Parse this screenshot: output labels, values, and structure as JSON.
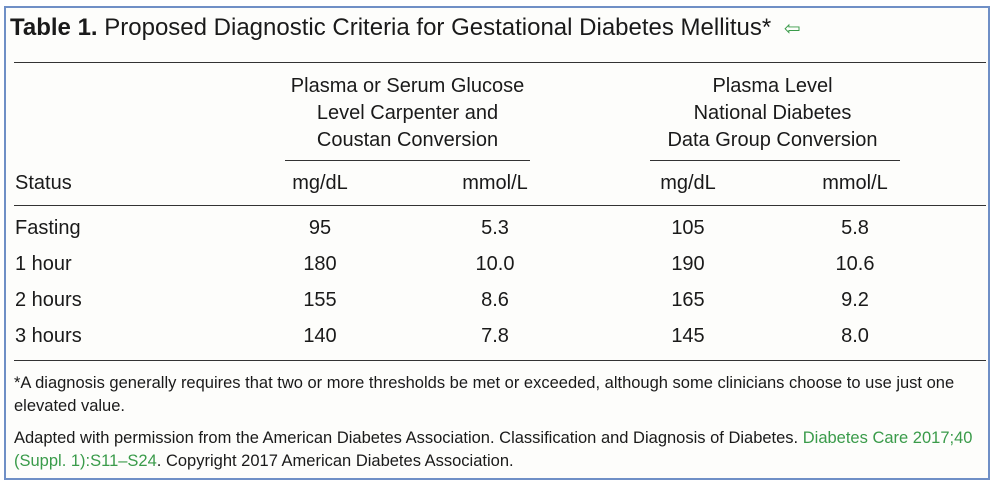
{
  "title": {
    "label": "Table 1.",
    "text": "Proposed Diagnostic Criteria for Gestational Diabetes Mellitus*",
    "back_icon": "back-arrow-icon"
  },
  "groups": [
    {
      "line1": "Plasma or Serum Glucose",
      "line2": "Level Carpenter and",
      "line3": "Coustan Conversion"
    },
    {
      "line1": "Plasma Level",
      "line2": "National Diabetes",
      "line3": "Data Group Conversion"
    }
  ],
  "columns": [
    "Status",
    "mg/dL",
    "mmol/L",
    "mg/dL",
    "mmol/L"
  ],
  "rows": [
    {
      "status": "Fasting",
      "v1": "95",
      "v2": "5.3",
      "v3": "105",
      "v4": "5.8"
    },
    {
      "status": "1 hour",
      "v1": "180",
      "v2": "10.0",
      "v3": "190",
      "v4": "10.6"
    },
    {
      "status": "2 hours",
      "v1": "155",
      "v2": "8.6",
      "v3": "165",
      "v4": "9.2"
    },
    {
      "status": "3 hours",
      "v1": "140",
      "v2": "7.8",
      "v3": "145",
      "v4": "8.0"
    }
  ],
  "footnotes": {
    "note": "*A diagnosis generally requires that two or more thresholds be met or exceeded, although some clinicians choose to use just one elevated value.",
    "source_prefix": "Adapted with permission from the American Diabetes Association. Classification and Diagnosis of Diabetes. ",
    "source_link": "Diabetes Care 2017;40 (Suppl. 1):S11–S24",
    "source_suffix": ". Copyright 2017 American Diabetes Association."
  },
  "colors": {
    "border": "#6f8fc6",
    "link": "#3a9b4a"
  }
}
